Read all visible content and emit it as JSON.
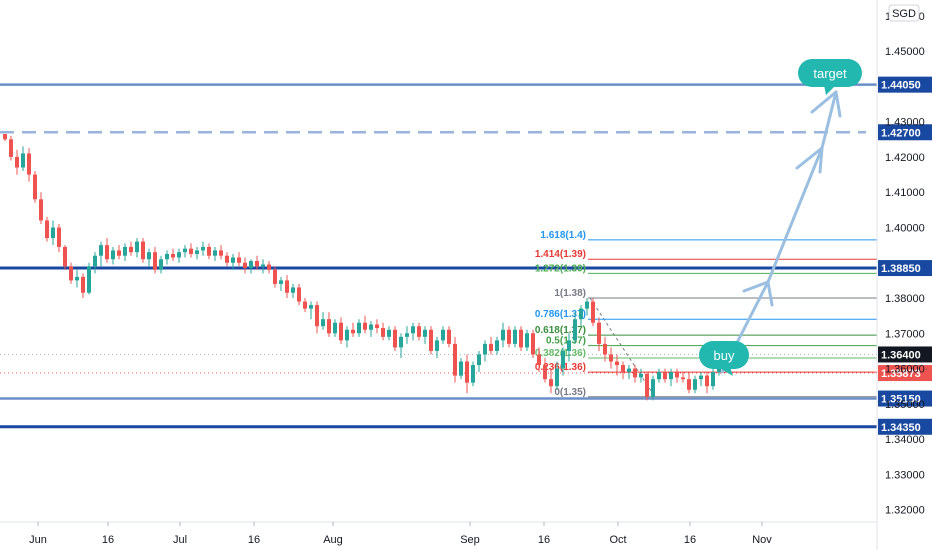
{
  "chart_data": {
    "type": "candlestick",
    "currency_label": "SGD",
    "x_tick_labels": [
      "Jun",
      "16",
      "Jul",
      "16",
      "Aug",
      "Sep",
      "16",
      "Oct",
      "16",
      "Nov"
    ],
    "y_tick_labels": [
      "1.46000",
      "1.45000",
      "1.43000",
      "1.42000",
      "1.41000",
      "1.40000",
      "1.38000",
      "1.37000",
      "1.36000",
      "1.35000",
      "1.34000",
      "1.33000",
      "1.32000"
    ],
    "ylim": [
      1.3165,
      1.4645
    ],
    "grid": false,
    "candles_ohlc": [
      [
        1.4265,
        1.4265,
        1.4245,
        1.425
      ],
      [
        1.425,
        1.426,
        1.419,
        1.42
      ],
      [
        1.42,
        1.422,
        1.415,
        1.417
      ],
      [
        1.417,
        1.423,
        1.416,
        1.421
      ],
      [
        1.421,
        1.4225,
        1.413,
        1.415
      ],
      [
        1.415,
        1.416,
        1.407,
        1.408
      ],
      [
        1.408,
        1.41,
        1.401,
        1.402
      ],
      [
        1.402,
        1.403,
        1.396,
        1.397
      ],
      [
        1.397,
        1.402,
        1.395,
        1.4
      ],
      [
        1.4,
        1.401,
        1.393,
        1.3945
      ],
      [
        1.3945,
        1.395,
        1.388,
        1.389
      ],
      [
        1.389,
        1.39,
        1.384,
        1.385
      ],
      [
        1.385,
        1.388,
        1.383,
        1.386
      ],
      [
        1.386,
        1.387,
        1.38,
        1.3815
      ],
      [
        1.3815,
        1.39,
        1.381,
        1.389
      ],
      [
        1.389,
        1.393,
        1.387,
        1.392
      ],
      [
        1.392,
        1.396,
        1.389,
        1.395
      ],
      [
        1.395,
        1.397,
        1.39,
        1.391
      ],
      [
        1.391,
        1.3945,
        1.3895,
        1.3935
      ],
      [
        1.3935,
        1.395,
        1.391,
        1.392
      ],
      [
        1.392,
        1.3955,
        1.3905,
        1.3945
      ],
      [
        1.3945,
        1.396,
        1.392,
        1.393
      ],
      [
        1.393,
        1.397,
        1.3915,
        1.396
      ],
      [
        1.396,
        1.397,
        1.39,
        1.391
      ],
      [
        1.391,
        1.394,
        1.389,
        1.393
      ],
      [
        1.393,
        1.3945,
        1.387,
        1.388
      ],
      [
        1.388,
        1.392,
        1.387,
        1.391
      ],
      [
        1.391,
        1.3935,
        1.3895,
        1.3925
      ],
      [
        1.3925,
        1.394,
        1.3905,
        1.3915
      ],
      [
        1.3915,
        1.394,
        1.39,
        1.393
      ],
      [
        1.393,
        1.395,
        1.3915,
        1.394
      ],
      [
        1.394,
        1.3955,
        1.3915,
        1.3925
      ],
      [
        1.3925,
        1.3945,
        1.391,
        1.3935
      ],
      [
        1.3935,
        1.396,
        1.392,
        1.3945
      ],
      [
        1.3945,
        1.3955,
        1.391,
        1.392
      ],
      [
        1.392,
        1.3945,
        1.3905,
        1.3935
      ],
      [
        1.3935,
        1.395,
        1.391,
        1.392
      ],
      [
        1.392,
        1.393,
        1.389,
        1.39
      ],
      [
        1.39,
        1.3925,
        1.388,
        1.3915
      ],
      [
        1.3915,
        1.393,
        1.389,
        1.39
      ],
      [
        1.39,
        1.3915,
        1.387,
        1.3885
      ],
      [
        1.3885,
        1.391,
        1.387,
        1.3905
      ],
      [
        1.3905,
        1.392,
        1.388,
        1.389
      ],
      [
        1.389,
        1.391,
        1.387,
        1.3895
      ],
      [
        1.3895,
        1.3905,
        1.387,
        1.388
      ],
      [
        1.388,
        1.389,
        1.383,
        1.384
      ],
      [
        1.384,
        1.386,
        1.382,
        1.385
      ],
      [
        1.385,
        1.3865,
        1.38,
        1.3815
      ],
      [
        1.3815,
        1.384,
        1.38,
        1.383
      ],
      [
        1.383,
        1.384,
        1.378,
        1.379
      ],
      [
        1.379,
        1.38,
        1.376,
        1.377
      ],
      [
        1.377,
        1.379,
        1.374,
        1.378
      ],
      [
        1.378,
        1.379,
        1.37,
        1.372
      ],
      [
        1.372,
        1.376,
        1.371,
        1.374
      ],
      [
        1.374,
        1.376,
        1.369,
        1.37
      ],
      [
        1.37,
        1.374,
        1.369,
        1.373
      ],
      [
        1.373,
        1.3745,
        1.367,
        1.368
      ],
      [
        1.368,
        1.372,
        1.366,
        1.371
      ],
      [
        1.371,
        1.373,
        1.369,
        1.37
      ],
      [
        1.37,
        1.374,
        1.369,
        1.373
      ],
      [
        1.373,
        1.375,
        1.37,
        1.371
      ],
      [
        1.371,
        1.3735,
        1.369,
        1.3725
      ],
      [
        1.3725,
        1.374,
        1.37,
        1.3715
      ],
      [
        1.3715,
        1.373,
        1.368,
        1.369
      ],
      [
        1.369,
        1.372,
        1.368,
        1.371
      ],
      [
        1.371,
        1.372,
        1.365,
        1.366
      ],
      [
        1.366,
        1.37,
        1.363,
        1.369
      ],
      [
        1.369,
        1.372,
        1.367,
        1.37
      ],
      [
        1.37,
        1.373,
        1.368,
        1.372
      ],
      [
        1.372,
        1.373,
        1.368,
        1.369
      ],
      [
        1.369,
        1.372,
        1.367,
        1.371
      ],
      [
        1.371,
        1.372,
        1.364,
        1.365
      ],
      [
        1.365,
        1.369,
        1.363,
        1.368
      ],
      [
        1.368,
        1.372,
        1.367,
        1.371
      ],
      [
        1.371,
        1.372,
        1.366,
        1.367
      ],
      [
        1.367,
        1.369,
        1.356,
        1.358
      ],
      [
        1.358,
        1.363,
        1.357,
        1.362
      ],
      [
        1.362,
        1.364,
        1.353,
        1.356
      ],
      [
        1.356,
        1.362,
        1.355,
        1.361
      ],
      [
        1.361,
        1.365,
        1.359,
        1.364
      ],
      [
        1.364,
        1.368,
        1.362,
        1.367
      ],
      [
        1.367,
        1.369,
        1.364,
        1.365
      ],
      [
        1.365,
        1.369,
        1.364,
        1.368
      ],
      [
        1.368,
        1.373,
        1.366,
        1.371
      ],
      [
        1.371,
        1.372,
        1.366,
        1.367
      ],
      [
        1.367,
        1.372,
        1.366,
        1.371
      ],
      [
        1.371,
        1.372,
        1.365,
        1.366
      ],
      [
        1.366,
        1.371,
        1.365,
        1.37
      ],
      [
        1.37,
        1.371,
        1.363,
        1.364
      ],
      [
        1.364,
        1.366,
        1.359,
        1.361
      ],
      [
        1.361,
        1.363,
        1.356,
        1.357
      ],
      [
        1.357,
        1.36,
        1.353,
        1.355
      ],
      [
        1.355,
        1.362,
        1.354,
        1.36
      ],
      [
        1.36,
        1.366,
        1.358,
        1.365
      ],
      [
        1.365,
        1.37,
        1.362,
        1.368
      ],
      [
        1.368,
        1.376,
        1.367,
        1.374
      ],
      [
        1.374,
        1.378,
        1.372,
        1.377
      ],
      [
        1.377,
        1.38,
        1.375,
        1.379
      ],
      [
        1.379,
        1.38,
        1.372,
        1.373
      ],
      [
        1.373,
        1.3745,
        1.365,
        1.367
      ],
      [
        1.367,
        1.369,
        1.362,
        1.364
      ],
      [
        1.364,
        1.366,
        1.36,
        1.362
      ],
      [
        1.362,
        1.364,
        1.358,
        1.361
      ],
      [
        1.361,
        1.362,
        1.357,
        1.359
      ],
      [
        1.359,
        1.361,
        1.357,
        1.36
      ],
      [
        1.36,
        1.361,
        1.356,
        1.3575
      ],
      [
        1.3575,
        1.36,
        1.356,
        1.3585
      ],
      [
        1.3585,
        1.359,
        1.351,
        1.352
      ],
      [
        1.352,
        1.358,
        1.351,
        1.357
      ],
      [
        1.357,
        1.36,
        1.356,
        1.359
      ],
      [
        1.359,
        1.36,
        1.356,
        1.357
      ],
      [
        1.357,
        1.36,
        1.355,
        1.359
      ],
      [
        1.359,
        1.36,
        1.356,
        1.3575
      ],
      [
        1.3575,
        1.359,
        1.356,
        1.357
      ],
      [
        1.357,
        1.359,
        1.353,
        1.354
      ],
      [
        1.354,
        1.358,
        1.353,
        1.357
      ],
      [
        1.357,
        1.359,
        1.355,
        1.358
      ],
      [
        1.358,
        1.359,
        1.353,
        1.355
      ],
      [
        1.355,
        1.36,
        1.354,
        1.359
      ],
      [
        1.359,
        1.363,
        1.358,
        1.362
      ]
    ],
    "horizontal_levels": [
      {
        "label": "1.44050",
        "value": 1.4405,
        "style": "solid",
        "color": "#6a8fc8"
      },
      {
        "label": "1.42700",
        "value": 1.427,
        "style": "dashed",
        "color": "#9ab4de"
      },
      {
        "label": "1.38850",
        "value": 1.3885,
        "style": "solid",
        "color": "#1848a0"
      },
      {
        "label": "1.36400",
        "value": 1.364,
        "style": "solid",
        "color": "#6a8fc8"
      },
      {
        "label": "1.35873",
        "value": 1.35873,
        "style": "price",
        "color": "#ef5350"
      },
      {
        "label": "1.35150",
        "value": 1.3515,
        "style": "solid",
        "color": "#6a8fc8"
      },
      {
        "label": "1.34350",
        "value": 1.3435,
        "style": "solid",
        "color": "#1848a0"
      }
    ],
    "fib_levels": [
      {
        "label": "1.618(1.4)",
        "value": 1.3965,
        "color": "#2196f3"
      },
      {
        "label": "1.414(1.39)",
        "value": 1.391,
        "color": "#e53935"
      },
      {
        "label": "1.272(1.39)",
        "value": 1.387,
        "color": "#4caf50"
      },
      {
        "label": "1(1.38)",
        "value": 1.38,
        "color": "#787b86"
      },
      {
        "label": "0.786(1.37)",
        "value": 1.374,
        "color": "#2196f3"
      },
      {
        "label": "0.618(1.37)",
        "value": 1.3695,
        "color": "#388e3c"
      },
      {
        "label": "0.5(1.37)",
        "value": 1.3665,
        "color": "#43a047"
      },
      {
        "label": "0.382(1.36)",
        "value": 1.363,
        "color": "#66bb6a"
      },
      {
        "label": "0.236(1.36)",
        "value": 1.359,
        "color": "#e53935"
      },
      {
        "label": "0(1.35)",
        "value": 1.352,
        "color": "#787b86"
      }
    ],
    "annotations": [
      {
        "label": "buy",
        "value": 1.362
      },
      {
        "label": "target",
        "value": 1.4405
      }
    ]
  }
}
